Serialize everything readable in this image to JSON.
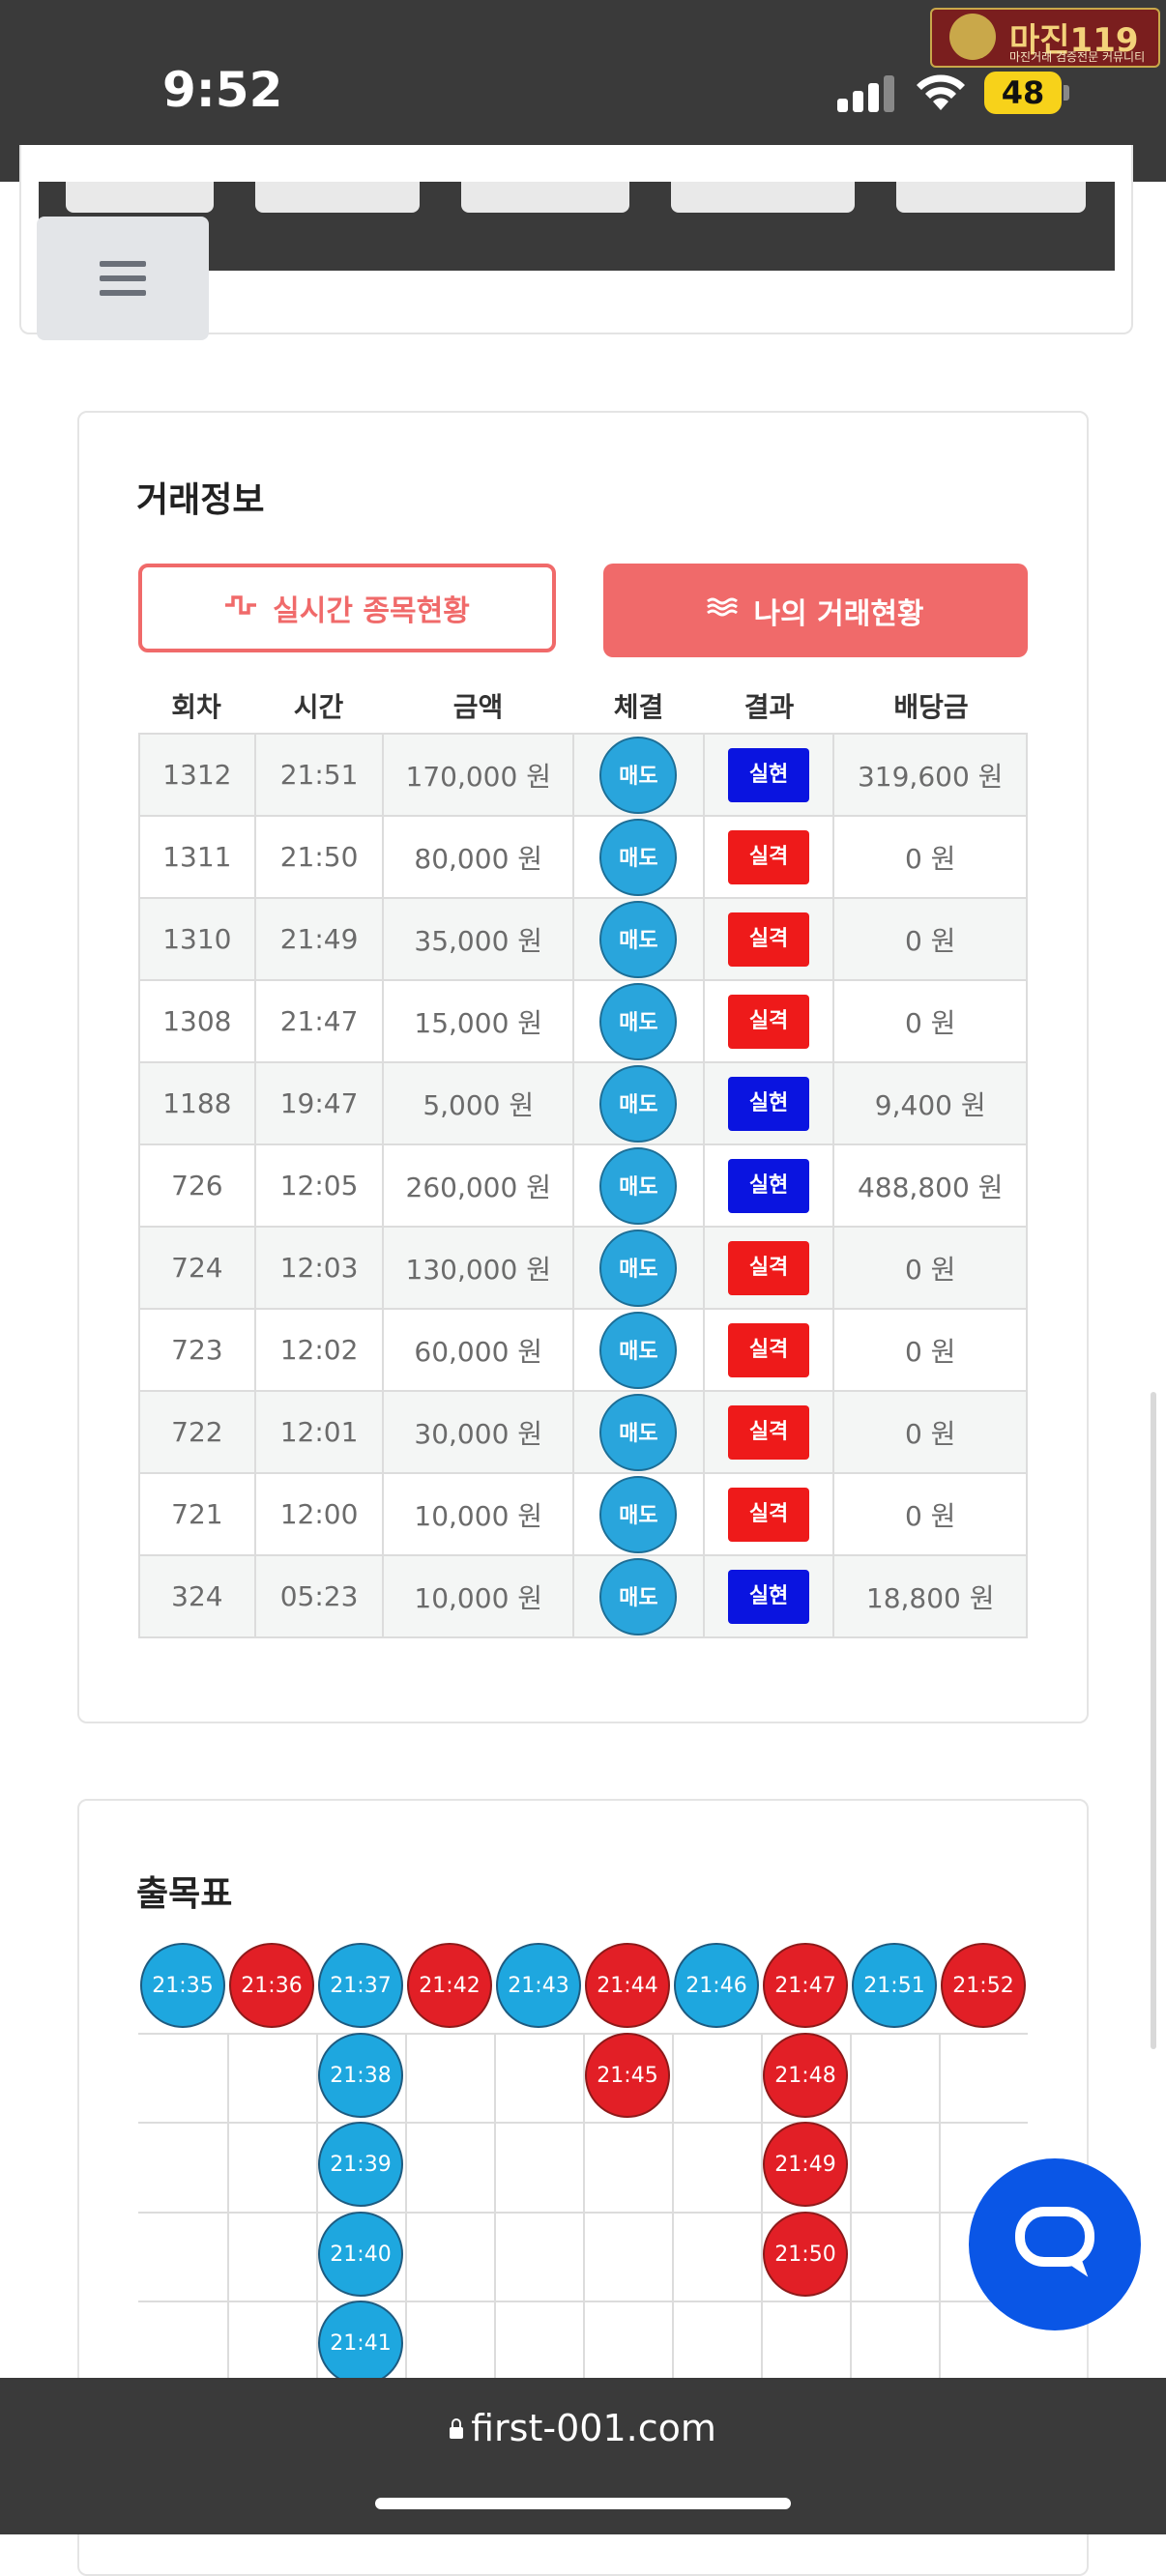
{
  "status_bar": {
    "time": "9:52",
    "battery": "48"
  },
  "logo": {
    "main": "마진119",
    "sub": "마진거래 검증전문 커뮤니티"
  },
  "trade_info": {
    "title": "거래정보",
    "btn_realtime": "실시간 종목현황",
    "btn_realtime_icon": "pulse-icon",
    "btn_mytrades": "나의 거래현황",
    "btn_mytrades_icon": "waves-icon",
    "columns": [
      "회차",
      "시간",
      "금액",
      "체결",
      "결과",
      "배당금"
    ],
    "rows": [
      {
        "round": "1312",
        "time": "21:51",
        "amount": "170,000 원",
        "exec": "매도",
        "result": "실현",
        "payout": "319,600 원"
      },
      {
        "round": "1311",
        "time": "21:50",
        "amount": "80,000 원",
        "exec": "매도",
        "result": "실격",
        "payout": "0 원"
      },
      {
        "round": "1310",
        "time": "21:49",
        "amount": "35,000 원",
        "exec": "매도",
        "result": "실격",
        "payout": "0 원"
      },
      {
        "round": "1308",
        "time": "21:47",
        "amount": "15,000 원",
        "exec": "매도",
        "result": "실격",
        "payout": "0 원"
      },
      {
        "round": "1188",
        "time": "19:47",
        "amount": "5,000 원",
        "exec": "매도",
        "result": "실현",
        "payout": "9,400 원"
      },
      {
        "round": "726",
        "time": "12:05",
        "amount": "260,000 원",
        "exec": "매도",
        "result": "실현",
        "payout": "488,800 원"
      },
      {
        "round": "724",
        "time": "12:03",
        "amount": "130,000 원",
        "exec": "매도",
        "result": "실격",
        "payout": "0 원"
      },
      {
        "round": "723",
        "time": "12:02",
        "amount": "60,000 원",
        "exec": "매도",
        "result": "실격",
        "payout": "0 원"
      },
      {
        "round": "722",
        "time": "12:01",
        "amount": "30,000 원",
        "exec": "매도",
        "result": "실격",
        "payout": "0 원"
      },
      {
        "round": "721",
        "time": "12:00",
        "amount": "10,000 원",
        "exec": "매도",
        "result": "실격",
        "payout": "0 원"
      },
      {
        "round": "324",
        "time": "05:23",
        "amount": "10,000 원",
        "exec": "매도",
        "result": "실현",
        "payout": "18,800 원"
      }
    ]
  },
  "result_board": {
    "title": "출목표",
    "columns": [
      {
        "color": "blue",
        "times": [
          "21:35"
        ]
      },
      {
        "color": "red",
        "times": [
          "21:36"
        ]
      },
      {
        "color": "blue",
        "times": [
          "21:37",
          "21:38",
          "21:39",
          "21:40",
          "21:41"
        ]
      },
      {
        "color": "red",
        "times": [
          "21:42"
        ]
      },
      {
        "color": "blue",
        "times": [
          "21:43"
        ]
      },
      {
        "color": "red",
        "times": [
          "21:44",
          "21:45"
        ]
      },
      {
        "color": "blue",
        "times": [
          "21:46"
        ]
      },
      {
        "color": "red",
        "times": [
          "21:47",
          "21:48",
          "21:49",
          "21:50"
        ]
      },
      {
        "color": "blue",
        "times": [
          "21:51"
        ]
      },
      {
        "color": "red",
        "times": [
          "21:52"
        ]
      }
    ]
  },
  "colors": {
    "accent": "#f06a6a",
    "win": "#0a14e0",
    "lose": "#ee1a1a",
    "blue_ball": "#1ea7df",
    "red_ball": "#e21f26",
    "chat": "#0a56e6"
  },
  "browser": {
    "url": "first-001.com"
  }
}
